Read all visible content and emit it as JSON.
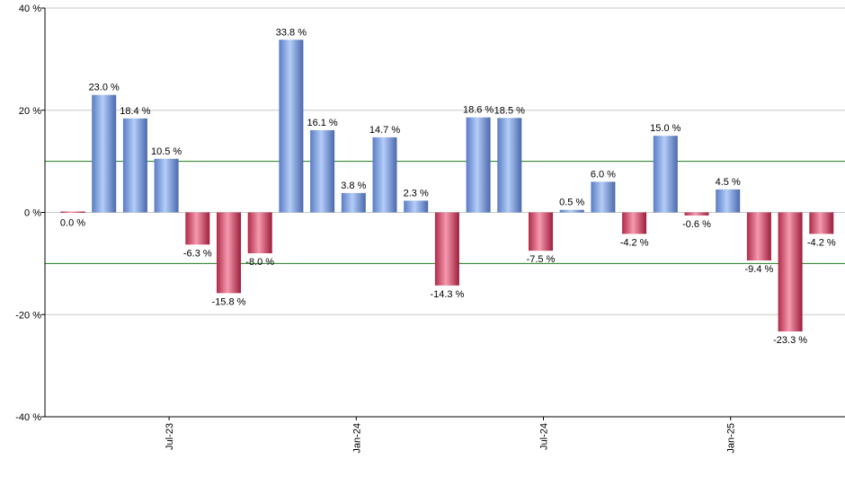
{
  "chart_data": {
    "type": "bar",
    "title": "",
    "xlabel": "",
    "ylabel": "",
    "ylim": [
      -40,
      40
    ],
    "yticks": [
      40,
      20,
      0,
      -20,
      -40
    ],
    "ytick_labels": [
      "40 %",
      "20 %",
      "0 %",
      "-20 %",
      "-40 %"
    ],
    "xtick_labels": [
      {
        "label": "Jul-23",
        "index": 3
      },
      {
        "label": "Jan-24",
        "index": 9
      },
      {
        "label": "Jul-24",
        "index": 15
      },
      {
        "label": "Jan-25",
        "index": 21
      }
    ],
    "reference_lines": [
      10,
      -10
    ],
    "grid": true,
    "values": [
      0.0,
      23.0,
      18.4,
      10.5,
      -6.3,
      -15.8,
      -8.0,
      33.8,
      16.1,
      3.8,
      14.7,
      2.3,
      -14.3,
      18.6,
      18.5,
      -7.5,
      0.5,
      6.0,
      -4.2,
      15.0,
      -0.6,
      4.5,
      -9.4,
      -23.3,
      -4.2
    ],
    "data_labels": [
      "0.0 %",
      "23.0 %",
      "18.4 %",
      "10.5 %",
      "-6.3 %",
      "-15.8 %",
      "-8.0 %",
      "33.8 %",
      "16.1 %",
      "3.8 %",
      "14.7 %",
      "2.3 %",
      "-14.3 %",
      "18.6 %",
      "18.5 %",
      "-7.5 %",
      "0.5 %",
      "6.0 %",
      "-4.2 %",
      "15.0 %",
      "-0.6 %",
      "4.5 %",
      "-9.4 %",
      "-23.3 %",
      "-4.2 %"
    ],
    "colors": {
      "positive_light": "#a9c4f5",
      "positive_dark": "#4d6fb8",
      "negative_light": "#f08aa0",
      "negative_dark": "#a8203f",
      "grid": "#c8c8c8",
      "reference_line": "#1f7a1f",
      "axis": "#000000"
    }
  }
}
